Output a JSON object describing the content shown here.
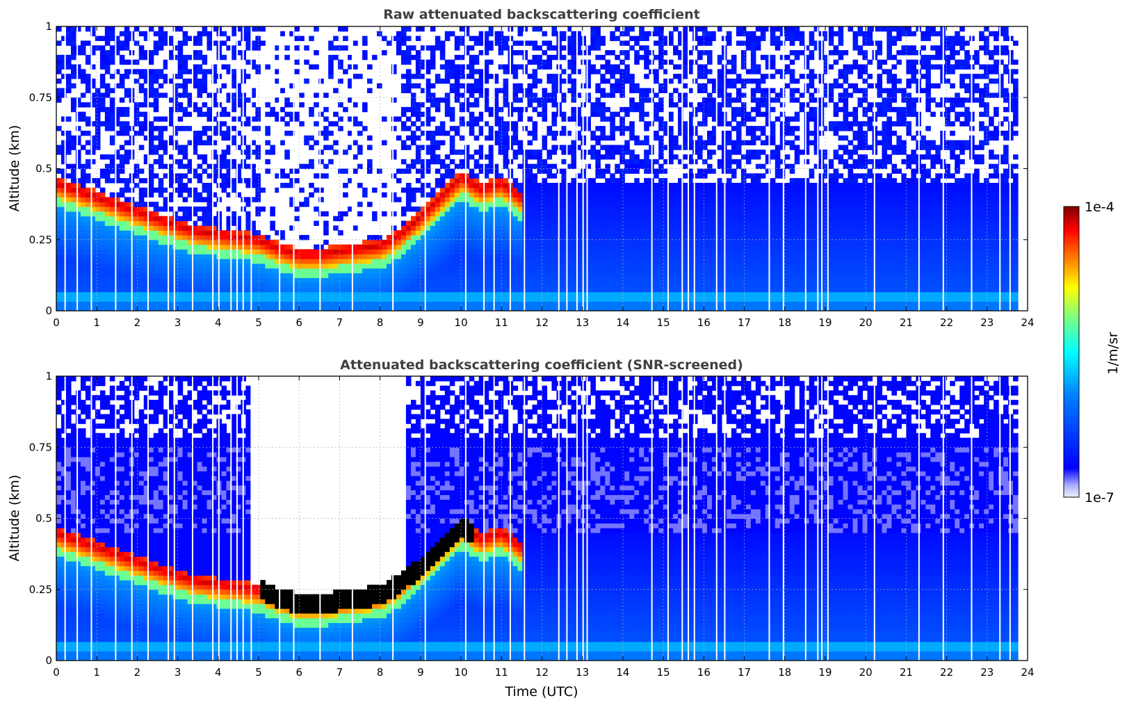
{
  "chart_data": [
    {
      "type": "heatmap",
      "title": "Raw attenuated backscattering coefficient",
      "xlabel": "",
      "ylabel": "Altitude (km)",
      "xlim": [
        0,
        24
      ],
      "ylim": [
        0,
        1
      ],
      "x_ticks": [
        "0",
        "1",
        "2",
        "3",
        "4",
        "5",
        "6",
        "7",
        "8",
        "9",
        "10",
        "11",
        "12",
        "13",
        "14",
        "15",
        "16",
        "17",
        "18",
        "19",
        "20",
        "21",
        "22",
        "23",
        "24"
      ],
      "y_ticks": [
        "0",
        "0.25",
        "0.5",
        "0.75",
        "1"
      ],
      "grid": true,
      "screened": false,
      "cloud_layer": {
        "time": [
          0,
          1,
          2,
          3,
          3.5,
          4,
          4.5,
          5,
          5.5,
          6,
          6.5,
          7,
          7.5,
          8,
          8.5,
          9,
          9.5,
          10,
          10.5,
          11,
          11.5
        ],
        "altitude_km": [
          0.45,
          0.4,
          0.35,
          0.3,
          0.28,
          0.27,
          0.26,
          0.25,
          0.22,
          0.2,
          0.2,
          0.21,
          0.22,
          0.23,
          0.27,
          0.33,
          0.4,
          0.47,
          0.43,
          0.45,
          0.4
        ]
      },
      "noise_top_km": 0.45,
      "colorbar": {
        "min": "1e-7",
        "max": "1e-4",
        "label": "1/m/sr",
        "scale": "log"
      }
    },
    {
      "type": "heatmap",
      "title": "Attenuated backscattering coefficient (SNR-screened)",
      "xlabel": "Time (UTC)",
      "ylabel": "Altitude (km)",
      "xlim": [
        0,
        24
      ],
      "ylim": [
        0,
        1
      ],
      "x_ticks": [
        "0",
        "1",
        "2",
        "3",
        "4",
        "5",
        "6",
        "7",
        "8",
        "9",
        "10",
        "11",
        "12",
        "13",
        "14",
        "15",
        "16",
        "17",
        "18",
        "19",
        "20",
        "21",
        "22",
        "23",
        "24"
      ],
      "y_ticks": [
        "0",
        "0.25",
        "0.5",
        "0.75",
        "1"
      ],
      "grid": true,
      "screened": true,
      "cloud_layer": {
        "time": [
          0,
          1,
          2,
          3,
          3.5,
          4,
          4.5,
          5,
          5.5,
          6,
          6.5,
          7,
          7.5,
          8,
          8.5,
          9,
          9.5,
          10,
          10.5,
          11,
          11.5
        ],
        "altitude_km": [
          0.45,
          0.4,
          0.35,
          0.3,
          0.28,
          0.27,
          0.26,
          0.25,
          0.22,
          0.2,
          0.2,
          0.21,
          0.22,
          0.23,
          0.27,
          0.33,
          0.4,
          0.47,
          0.43,
          0.45,
          0.4
        ]
      },
      "colorbar": {
        "min": "1e-7",
        "max": "1e-4",
        "label": "1/m/sr",
        "scale": "log"
      }
    }
  ],
  "colorbar": {
    "max_label": "1e-4",
    "min_label": "1e-7",
    "unit_label": "1/m/sr",
    "colors": [
      "#f0f0ff",
      "#0000ff",
      "#0080ff",
      "#00ffff",
      "#80ff80",
      "#ffff00",
      "#ff8000",
      "#ff0000",
      "#800000"
    ]
  },
  "style": {
    "title_color": "#404040",
    "black_core_color": "#000000",
    "background_high_color": "#0000ff",
    "near_surface_color": "#0080ff"
  }
}
